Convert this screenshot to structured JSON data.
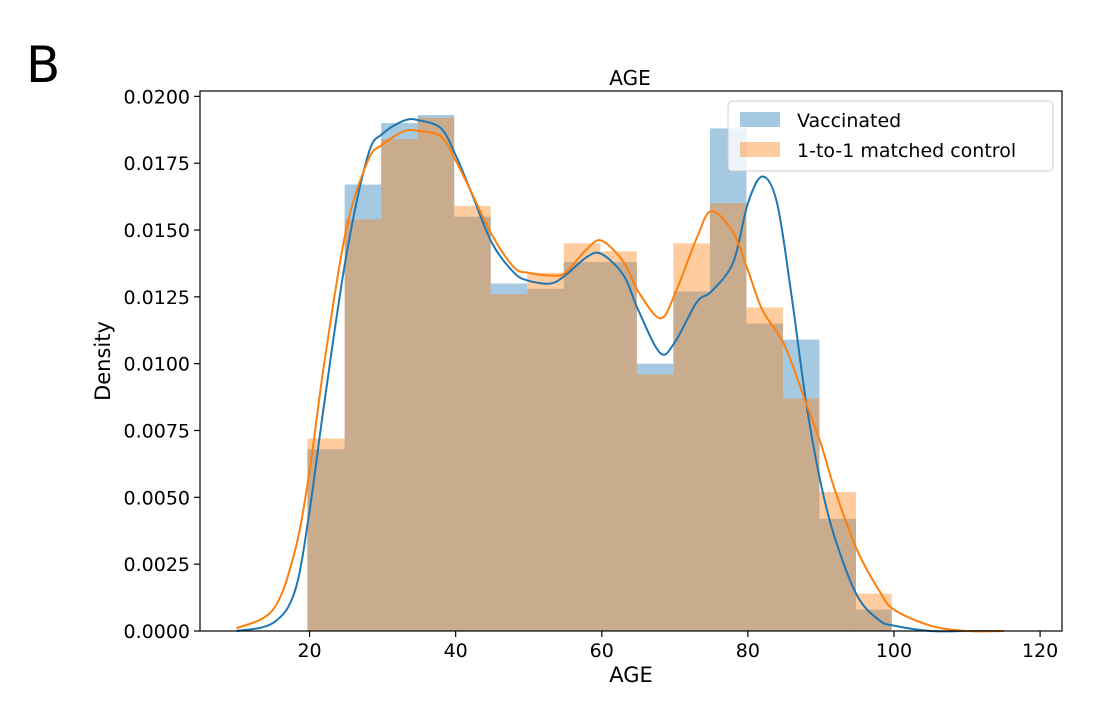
{
  "panel_label": "B",
  "chart_data": {
    "type": "bar",
    "title": "AGE",
    "xlabel": "AGE",
    "ylabel": "Density",
    "xlim": [
      5,
      123
    ],
    "ylim": [
      0,
      0.0202
    ],
    "xticks": [
      20,
      40,
      60,
      80,
      100,
      120
    ],
    "yticks": [
      0.0,
      0.0025,
      0.005,
      0.0075,
      0.01,
      0.0125,
      0.015,
      0.0175,
      0.02
    ],
    "ytick_labels": [
      "0.0000",
      "0.0025",
      "0.0050",
      "0.0075",
      "0.0100",
      "0.0125",
      "0.0150",
      "0.0175",
      "0.0200"
    ],
    "bin_edges": [
      19.7,
      24.8,
      29.8,
      34.8,
      39.8,
      44.8,
      49.8,
      54.8,
      59.8,
      64.8,
      69.8,
      74.8,
      79.8,
      84.8,
      89.8,
      94.8,
      99.7
    ],
    "legend_position": "upper right",
    "series": [
      {
        "name": "Vaccinated",
        "color": "#1f77b4",
        "hist": [
          0.0068,
          0.0167,
          0.019,
          0.0193,
          0.0155,
          0.013,
          0.0128,
          0.0138,
          0.0138,
          0.01,
          0.0127,
          0.0188,
          0.0115,
          0.0109,
          0.0042,
          0.0008
        ],
        "kde_x": [
          10,
          15,
          18,
          20,
          22,
          25,
          28,
          30,
          33,
          35,
          38,
          40,
          42,
          45,
          48,
          50,
          53,
          55,
          58,
          60,
          63,
          65,
          68,
          70,
          73,
          75,
          78,
          80,
          82,
          84,
          86,
          88,
          90,
          92,
          95,
          98,
          100,
          105,
          110,
          115
        ],
        "kde_y": [
          0.0,
          0.0003,
          0.0015,
          0.0045,
          0.0085,
          0.014,
          0.0178,
          0.0186,
          0.0191,
          0.0191,
          0.0188,
          0.0178,
          0.0165,
          0.0145,
          0.0134,
          0.0131,
          0.013,
          0.0133,
          0.014,
          0.0141,
          0.0133,
          0.012,
          0.0104,
          0.0108,
          0.0123,
          0.0127,
          0.0138,
          0.016,
          0.017,
          0.016,
          0.0125,
          0.0085,
          0.0055,
          0.0034,
          0.0013,
          0.0004,
          0.0002,
          0.0,
          0.0,
          0.0
        ]
      },
      {
        "name": "1-to-1 matched control",
        "color": "#ff7f0e",
        "hist": [
          0.0072,
          0.0154,
          0.0184,
          0.0192,
          0.0159,
          0.0126,
          0.0134,
          0.0145,
          0.0142,
          0.0096,
          0.0145,
          0.016,
          0.0121,
          0.0087,
          0.0052,
          0.0014
        ],
        "kde_x": [
          10,
          15,
          18,
          20,
          22,
          25,
          28,
          30,
          33,
          35,
          38,
          40,
          42,
          45,
          48,
          50,
          53,
          55,
          58,
          60,
          63,
          65,
          68,
          70,
          73,
          75,
          78,
          80,
          82,
          85,
          88,
          90,
          92,
          95,
          98,
          100,
          105,
          110,
          115
        ],
        "kde_y": [
          0.0001,
          0.0008,
          0.003,
          0.006,
          0.01,
          0.015,
          0.0176,
          0.0182,
          0.0187,
          0.0187,
          0.0185,
          0.0176,
          0.0165,
          0.0148,
          0.0136,
          0.0134,
          0.0133,
          0.0134,
          0.0143,
          0.0146,
          0.0138,
          0.0127,
          0.0117,
          0.0126,
          0.0147,
          0.0157,
          0.0149,
          0.0135,
          0.012,
          0.0107,
          0.0085,
          0.007,
          0.0052,
          0.003,
          0.0015,
          0.0008,
          0.0002,
          0.0,
          0.0
        ]
      }
    ]
  }
}
